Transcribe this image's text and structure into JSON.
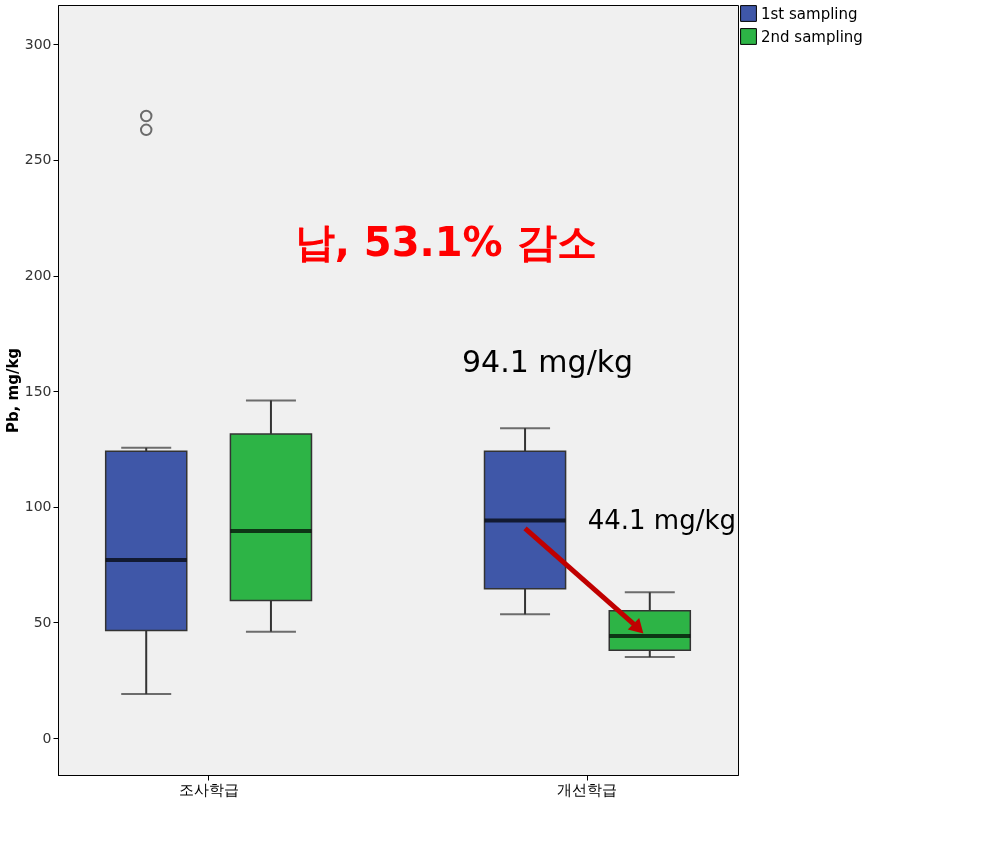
{
  "chart_data": {
    "type": "box",
    "categories": [
      "조사학급",
      "개선학급"
    ],
    "ylabel": "Pb, mg/kg",
    "ylim": [
      -16,
      317
    ],
    "yticks": [
      0,
      50,
      100,
      150,
      200,
      250,
      300
    ],
    "grid": false,
    "legend": "top right",
    "series": [
      {
        "name": "1st sampling",
        "color": "#3f57a8",
        "boxes": [
          {
            "low": 19,
            "q1": 46.5,
            "median": 77,
            "q3": 124,
            "high": 125.5,
            "outliers": [
              269,
              263
            ]
          },
          {
            "low": 53.5,
            "q1": 64.5,
            "median": 94.1,
            "q3": 124,
            "high": 134
          }
        ]
      },
      {
        "name": "2nd sampling",
        "color": "#2db446",
        "boxes": [
          {
            "low": 46,
            "q1": 59.5,
            "median": 89.5,
            "q3": 131.5,
            "high": 146
          },
          {
            "low": 35,
            "q1": 38,
            "median": 44.1,
            "q3": 55,
            "high": 63
          }
        ]
      }
    ],
    "annotations": [
      "납, 53.1% 감소",
      "94.1 mg/kg",
      "44.1 mg/kg"
    ]
  }
}
